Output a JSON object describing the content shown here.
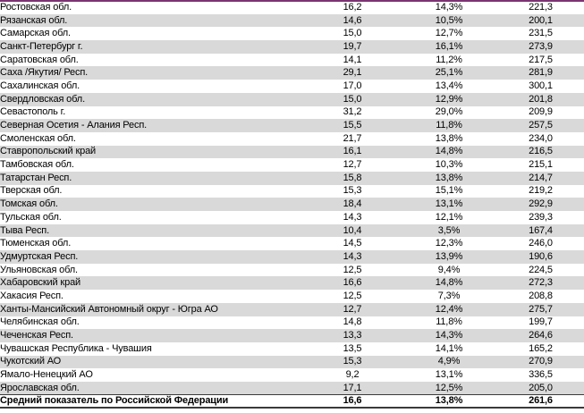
{
  "colors": {
    "top_border": "#7B3470",
    "stripe": "#D9D9D9",
    "summary_border": "#3a3a3a",
    "text": "#000000"
  },
  "table": {
    "rows": [
      {
        "name": "Ростовская обл.",
        "v1": "16,2",
        "v2": "14,3%",
        "v3": "221,3"
      },
      {
        "name": "Рязанская обл.",
        "v1": "14,6",
        "v2": "10,5%",
        "v3": "200,1"
      },
      {
        "name": "Самарская обл.",
        "v1": "15,0",
        "v2": "12,7%",
        "v3": "231,5"
      },
      {
        "name": "Санкт-Петербург г.",
        "v1": "19,7",
        "v2": "16,1%",
        "v3": "273,9"
      },
      {
        "name": "Саратовская обл.",
        "v1": "14,1",
        "v2": "11,2%",
        "v3": "217,5"
      },
      {
        "name": "Саха /Якутия/ Респ.",
        "v1": "29,1",
        "v2": "25,1%",
        "v3": "281,9"
      },
      {
        "name": "Сахалинская обл.",
        "v1": "17,0",
        "v2": "13,4%",
        "v3": "300,1"
      },
      {
        "name": "Свердловская обл.",
        "v1": "15,0",
        "v2": "12,9%",
        "v3": "201,8"
      },
      {
        "name": "Севастополь г.",
        "v1": "31,2",
        "v2": "29,0%",
        "v3": "209,9"
      },
      {
        "name": "Северная Осетия - Алания Респ.",
        "v1": "15,5",
        "v2": "11,8%",
        "v3": "257,5"
      },
      {
        "name": "Смоленская обл.",
        "v1": "21,7",
        "v2": "13,8%",
        "v3": "234,0"
      },
      {
        "name": "Ставропольский край",
        "v1": "16,1",
        "v2": "14,8%",
        "v3": "216,5"
      },
      {
        "name": "Тамбовская обл.",
        "v1": "12,7",
        "v2": "10,3%",
        "v3": "215,1"
      },
      {
        "name": "Татарстан Респ.",
        "v1": "15,8",
        "v2": "13,8%",
        "v3": "214,7"
      },
      {
        "name": "Тверская обл.",
        "v1": "15,3",
        "v2": "15,1%",
        "v3": "219,2"
      },
      {
        "name": "Томская обл.",
        "v1": "18,4",
        "v2": "13,1%",
        "v3": "292,9"
      },
      {
        "name": "Тульская обл.",
        "v1": "14,3",
        "v2": "12,1%",
        "v3": "239,3"
      },
      {
        "name": "Тыва Респ.",
        "v1": "10,4",
        "v2": "3,5%",
        "v3": "167,4"
      },
      {
        "name": "Тюменская обл.",
        "v1": "14,5",
        "v2": "12,3%",
        "v3": "246,0"
      },
      {
        "name": "Удмуртская Респ.",
        "v1": "14,3",
        "v2": "13,9%",
        "v3": "190,6"
      },
      {
        "name": "Ульяновская обл.",
        "v1": "12,5",
        "v2": "9,4%",
        "v3": "224,5"
      },
      {
        "name": "Хабаровский край",
        "v1": "16,6",
        "v2": "14,8%",
        "v3": "272,3"
      },
      {
        "name": "Хакасия Респ.",
        "v1": "12,5",
        "v2": "7,3%",
        "v3": "208,8"
      },
      {
        "name": "Ханты-Мансийский Автономный округ - Югра АО",
        "v1": "12,7",
        "v2": "12,4%",
        "v3": "275,7"
      },
      {
        "name": "Челябинская обл.",
        "v1": "14,8",
        "v2": "11,8%",
        "v3": "199,7"
      },
      {
        "name": "Чеченская Респ.",
        "v1": "13,3",
        "v2": "14,3%",
        "v3": "264,6"
      },
      {
        "name": "Чувашская Республика - Чувашия",
        "v1": "13,5",
        "v2": "14,1%",
        "v3": "165,2"
      },
      {
        "name": "Чукотский АО",
        "v1": "15,3",
        "v2": "4,9%",
        "v3": "270,9"
      },
      {
        "name": "Ямало-Ненецкий АО",
        "v1": "9,2",
        "v2": "13,1%",
        "v3": "336,5"
      },
      {
        "name": "Ярославская обл.",
        "v1": "17,1",
        "v2": "12,5%",
        "v3": "205,0"
      }
    ],
    "summary": {
      "name": "Средний показатель по Российской Федерации",
      "v1": "16,6",
      "v2": "13,8%",
      "v3": "261,6"
    }
  }
}
